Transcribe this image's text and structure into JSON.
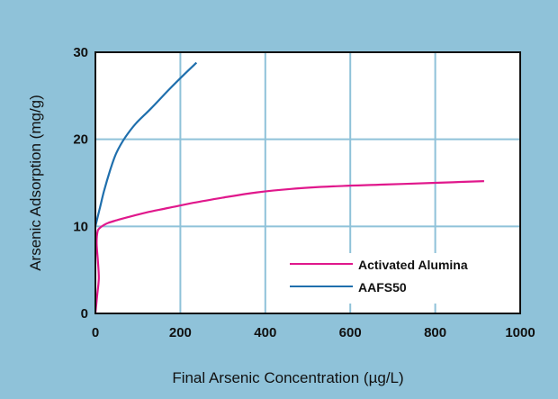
{
  "chart_data": {
    "type": "line",
    "title": "",
    "xlabel": "Final Arsenic Concentration (µg/L)",
    "ylabel": "Arsenic Adsorption (mg/g)",
    "xlim": [
      0,
      1000
    ],
    "ylim": [
      0,
      30
    ],
    "xticks": [
      0,
      200,
      400,
      600,
      800,
      1000
    ],
    "yticks": [
      0,
      10,
      20,
      30
    ],
    "x_tick_labels": [
      "0",
      "200",
      "400",
      "600",
      "800",
      "1000"
    ],
    "y_tick_labels": [
      "0",
      "10",
      "20",
      "30"
    ],
    "grid": true,
    "legend_position": "bottom-right",
    "series": [
      {
        "name": "Activated Alumina",
        "color": "#e0188c",
        "x": [
          0,
          4,
          8,
          6,
          3,
          5,
          10,
          18,
          30,
          50,
          80,
          120,
          170,
          230,
          300,
          380,
          460,
          560,
          680,
          800,
          915
        ],
        "y": [
          0,
          2,
          4,
          6,
          8,
          9.4,
          9.8,
          10.1,
          10.4,
          10.7,
          11.1,
          11.6,
          12.1,
          12.7,
          13.3,
          13.9,
          14.3,
          14.6,
          14.8,
          15.0,
          15.2
        ]
      },
      {
        "name": "AAFS50",
        "color": "#1f6fad",
        "x": [
          0,
          10,
          20,
          35,
          50,
          70,
          95,
          130,
          175,
          210,
          238
        ],
        "y": [
          10,
          12,
          14,
          16.5,
          18.5,
          20.2,
          21.8,
          23.5,
          25.8,
          27.5,
          28.8
        ]
      }
    ]
  }
}
